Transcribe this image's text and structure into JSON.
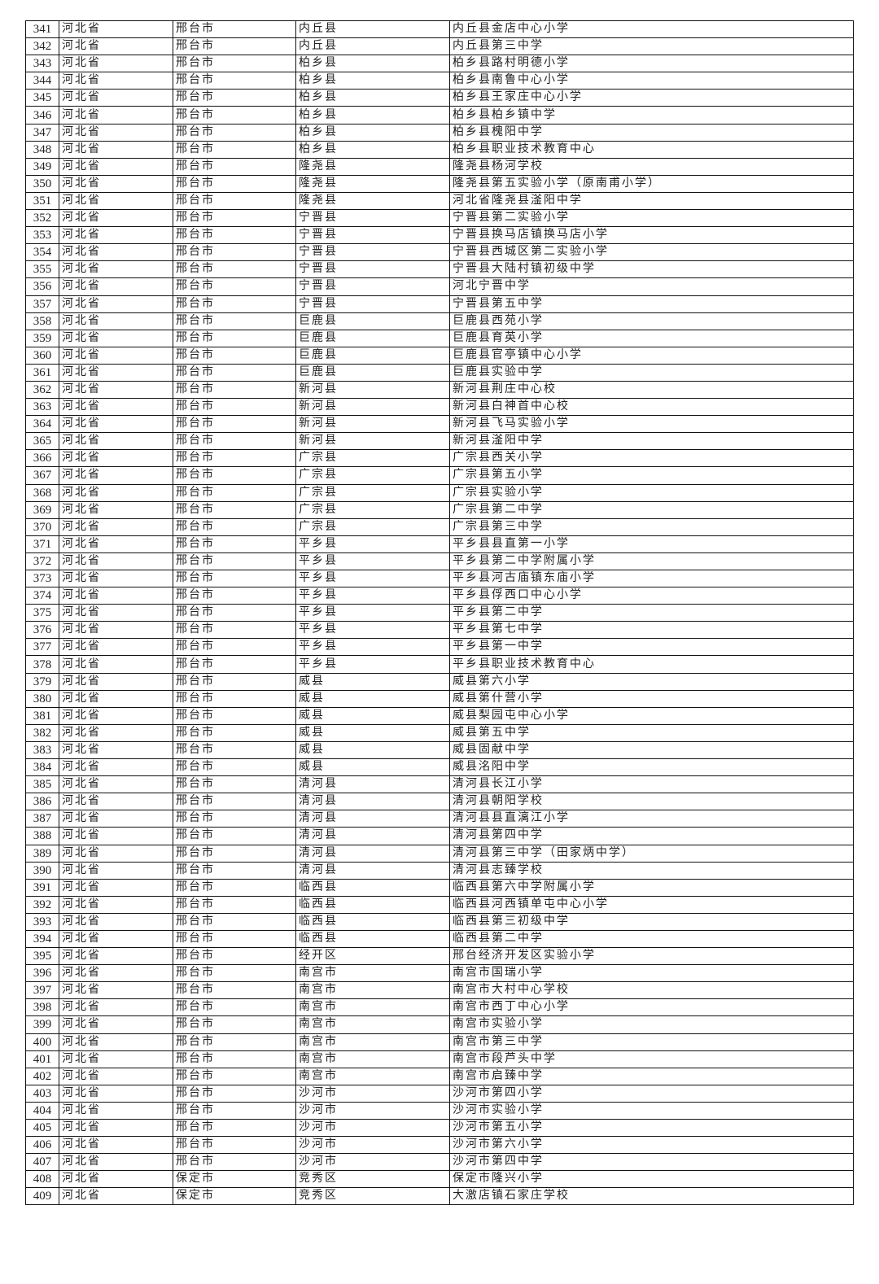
{
  "rows": [
    [
      "341",
      "河北省",
      "邢台市",
      "内丘县",
      "内丘县金店中心小学"
    ],
    [
      "342",
      "河北省",
      "邢台市",
      "内丘县",
      "内丘县第三中学"
    ],
    [
      "343",
      "河北省",
      "邢台市",
      "柏乡县",
      "柏乡县路村明德小学"
    ],
    [
      "344",
      "河北省",
      "邢台市",
      "柏乡县",
      "柏乡县南鲁中心小学"
    ],
    [
      "345",
      "河北省",
      "邢台市",
      "柏乡县",
      "柏乡县王家庄中心小学"
    ],
    [
      "346",
      "河北省",
      "邢台市",
      "柏乡县",
      "柏乡县柏乡镇中学"
    ],
    [
      "347",
      "河北省",
      "邢台市",
      "柏乡县",
      "柏乡县槐阳中学"
    ],
    [
      "348",
      "河北省",
      "邢台市",
      "柏乡县",
      "柏乡县职业技术教育中心"
    ],
    [
      "349",
      "河北省",
      "邢台市",
      "隆尧县",
      "隆尧县杨河学校"
    ],
    [
      "350",
      "河北省",
      "邢台市",
      "隆尧县",
      "隆尧县第五实验小学（原南甫小学）"
    ],
    [
      "351",
      "河北省",
      "邢台市",
      "隆尧县",
      "河北省隆尧县滏阳中学"
    ],
    [
      "352",
      "河北省",
      "邢台市",
      "宁晋县",
      "宁晋县第二实验小学"
    ],
    [
      "353",
      "河北省",
      "邢台市",
      "宁晋县",
      "宁晋县换马店镇换马店小学"
    ],
    [
      "354",
      "河北省",
      "邢台市",
      "宁晋县",
      "宁晋县西城区第二实验小学"
    ],
    [
      "355",
      "河北省",
      "邢台市",
      "宁晋县",
      "宁晋县大陆村镇初级中学"
    ],
    [
      "356",
      "河北省",
      "邢台市",
      "宁晋县",
      "河北宁晋中学"
    ],
    [
      "357",
      "河北省",
      "邢台市",
      "宁晋县",
      "宁晋县第五中学"
    ],
    [
      "358",
      "河北省",
      "邢台市",
      "巨鹿县",
      "巨鹿县西苑小学"
    ],
    [
      "359",
      "河北省",
      "邢台市",
      "巨鹿县",
      "巨鹿县育英小学"
    ],
    [
      "360",
      "河北省",
      "邢台市",
      "巨鹿县",
      "巨鹿县官亭镇中心小学"
    ],
    [
      "361",
      "河北省",
      "邢台市",
      "巨鹿县",
      "巨鹿县实验中学"
    ],
    [
      "362",
      "河北省",
      "邢台市",
      "新河县",
      "新河县荆庄中心校"
    ],
    [
      "363",
      "河北省",
      "邢台市",
      "新河县",
      "新河县白神首中心校"
    ],
    [
      "364",
      "河北省",
      "邢台市",
      "新河县",
      "新河县飞马实验小学"
    ],
    [
      "365",
      "河北省",
      "邢台市",
      "新河县",
      "新河县滏阳中学"
    ],
    [
      "366",
      "河北省",
      "邢台市",
      "广宗县",
      "广宗县西关小学"
    ],
    [
      "367",
      "河北省",
      "邢台市",
      "广宗县",
      "广宗县第五小学"
    ],
    [
      "368",
      "河北省",
      "邢台市",
      "广宗县",
      "广宗县实验小学"
    ],
    [
      "369",
      "河北省",
      "邢台市",
      "广宗县",
      "广宗县第二中学"
    ],
    [
      "370",
      "河北省",
      "邢台市",
      "广宗县",
      "广宗县第三中学"
    ],
    [
      "371",
      "河北省",
      "邢台市",
      "平乡县",
      "平乡县县直第一小学"
    ],
    [
      "372",
      "河北省",
      "邢台市",
      "平乡县",
      "平乡县第二中学附属小学"
    ],
    [
      "373",
      "河北省",
      "邢台市",
      "平乡县",
      "平乡县河古庙镇东庙小学"
    ],
    [
      "374",
      "河北省",
      "邢台市",
      "平乡县",
      "平乡县俘西口中心小学"
    ],
    [
      "375",
      "河北省",
      "邢台市",
      "平乡县",
      "平乡县第二中学"
    ],
    [
      "376",
      "河北省",
      "邢台市",
      "平乡县",
      "平乡县第七中学"
    ],
    [
      "377",
      "河北省",
      "邢台市",
      "平乡县",
      "平乡县第一中学"
    ],
    [
      "378",
      "河北省",
      "邢台市",
      "平乡县",
      "平乡县职业技术教育中心"
    ],
    [
      "379",
      "河北省",
      "邢台市",
      "威县",
      "威县第六小学"
    ],
    [
      "380",
      "河北省",
      "邢台市",
      "威县",
      "威县第什营小学"
    ],
    [
      "381",
      "河北省",
      "邢台市",
      "威县",
      "威县梨园屯中心小学"
    ],
    [
      "382",
      "河北省",
      "邢台市",
      "威县",
      "威县第五中学"
    ],
    [
      "383",
      "河北省",
      "邢台市",
      "威县",
      "威县固献中学"
    ],
    [
      "384",
      "河北省",
      "邢台市",
      "威县",
      "威县洺阳中学"
    ],
    [
      "385",
      "河北省",
      "邢台市",
      "清河县",
      "清河县长江小学"
    ],
    [
      "386",
      "河北省",
      "邢台市",
      "清河县",
      "清河县朝阳学校"
    ],
    [
      "387",
      "河北省",
      "邢台市",
      "清河县",
      "清河县县直漓江小学"
    ],
    [
      "388",
      "河北省",
      "邢台市",
      "清河县",
      "清河县第四中学"
    ],
    [
      "389",
      "河北省",
      "邢台市",
      "清河县",
      "清河县第三中学（田家炳中学）"
    ],
    [
      "390",
      "河北省",
      "邢台市",
      "清河县",
      "清河县志臻学校"
    ],
    [
      "391",
      "河北省",
      "邢台市",
      "临西县",
      "临西县第六中学附属小学"
    ],
    [
      "392",
      "河北省",
      "邢台市",
      "临西县",
      "临西县河西镇单屯中心小学"
    ],
    [
      "393",
      "河北省",
      "邢台市",
      "临西县",
      "临西县第三初级中学"
    ],
    [
      "394",
      "河北省",
      "邢台市",
      "临西县",
      "临西县第二中学"
    ],
    [
      "395",
      "河北省",
      "邢台市",
      "经开区",
      "邢台经济开发区实验小学"
    ],
    [
      "396",
      "河北省",
      "邢台市",
      "南宫市",
      "南宫市国瑞小学"
    ],
    [
      "397",
      "河北省",
      "邢台市",
      "南宫市",
      "南宫市大村中心学校"
    ],
    [
      "398",
      "河北省",
      "邢台市",
      "南宫市",
      "南宫市西丁中心小学"
    ],
    [
      "399",
      "河北省",
      "邢台市",
      "南宫市",
      "南宫市实验小学"
    ],
    [
      "400",
      "河北省",
      "邢台市",
      "南宫市",
      "南宫市第三中学"
    ],
    [
      "401",
      "河北省",
      "邢台市",
      "南宫市",
      "南宫市段芦头中学"
    ],
    [
      "402",
      "河北省",
      "邢台市",
      "南宫市",
      "南宫市启臻中学"
    ],
    [
      "403",
      "河北省",
      "邢台市",
      "沙河市",
      "沙河市第四小学"
    ],
    [
      "404",
      "河北省",
      "邢台市",
      "沙河市",
      "沙河市实验小学"
    ],
    [
      "405",
      "河北省",
      "邢台市",
      "沙河市",
      "沙河市第五小学"
    ],
    [
      "406",
      "河北省",
      "邢台市",
      "沙河市",
      "沙河市第六小学"
    ],
    [
      "407",
      "河北省",
      "邢台市",
      "沙河市",
      "沙河市第四中学"
    ],
    [
      "408",
      "河北省",
      "保定市",
      "竞秀区",
      "保定市隆兴小学"
    ],
    [
      "409",
      "河北省",
      "保定市",
      "竞秀区",
      "大激店镇石家庄学校"
    ]
  ]
}
